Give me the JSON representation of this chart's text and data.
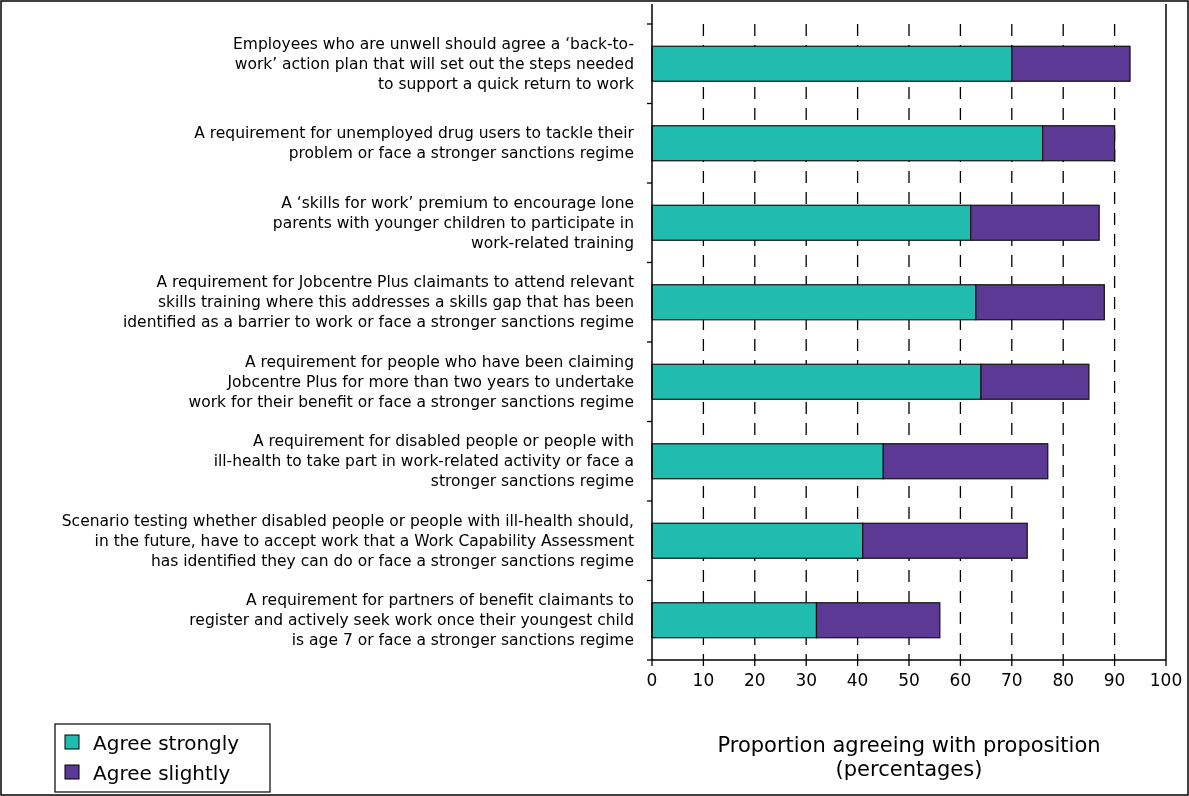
{
  "chart_data": {
    "type": "bar",
    "orientation": "horizontal",
    "stacked": true,
    "categories": [
      "Employees who are unwell should agree a ‘back-to-\nwork’ action plan that will set out the steps needed\nto support a quick return to work",
      "A requirement for unemployed drug users to tackle their\nproblem or face a stronger sanctions regime",
      "A ‘skills for work’ premium to encourage lone\nparents with younger children to participate in\nwork-related training",
      "A requirement for Jobcentre Plus claimants to attend relevant\nskills training where this addresses a skills gap that has been\nidentified as a barrier to work or face a stronger sanctions regime",
      "A requirement for people who have been claiming\nJobcentre Plus for more than two years to undertake\nwork for their benefit or face a stronger sanctions regime",
      "A requirement for disabled people or people with\nill-health to take part in work-related activity or face a\nstronger sanctions regime",
      "Scenario testing whether disabled people or people with ill-health should,\nin the future, have to accept work that a Work Capability Assessment\nhas identified they can do or face a stronger sanctions regime",
      "A requirement for partners of benefit claimants to\nregister and actively seek work once their youngest child\nis age 7 or face a stronger sanctions regime"
    ],
    "series": [
      {
        "name": "Agree strongly",
        "color": "#20bcb0",
        "values": [
          70,
          76,
          62,
          63,
          64,
          45,
          41,
          32
        ]
      },
      {
        "name": "Agree slightly",
        "color": "#5b3994",
        "values": [
          23,
          14,
          25,
          25,
          21,
          32,
          32,
          24
        ]
      }
    ],
    "xlabel": "Proportion agreeing with proposition\n(percentages)",
    "xlim": [
      0,
      100
    ],
    "xticks": [
      0,
      10,
      20,
      30,
      40,
      50,
      60,
      70,
      80,
      90,
      100
    ],
    "grid": "x",
    "legend": "bottom left"
  }
}
